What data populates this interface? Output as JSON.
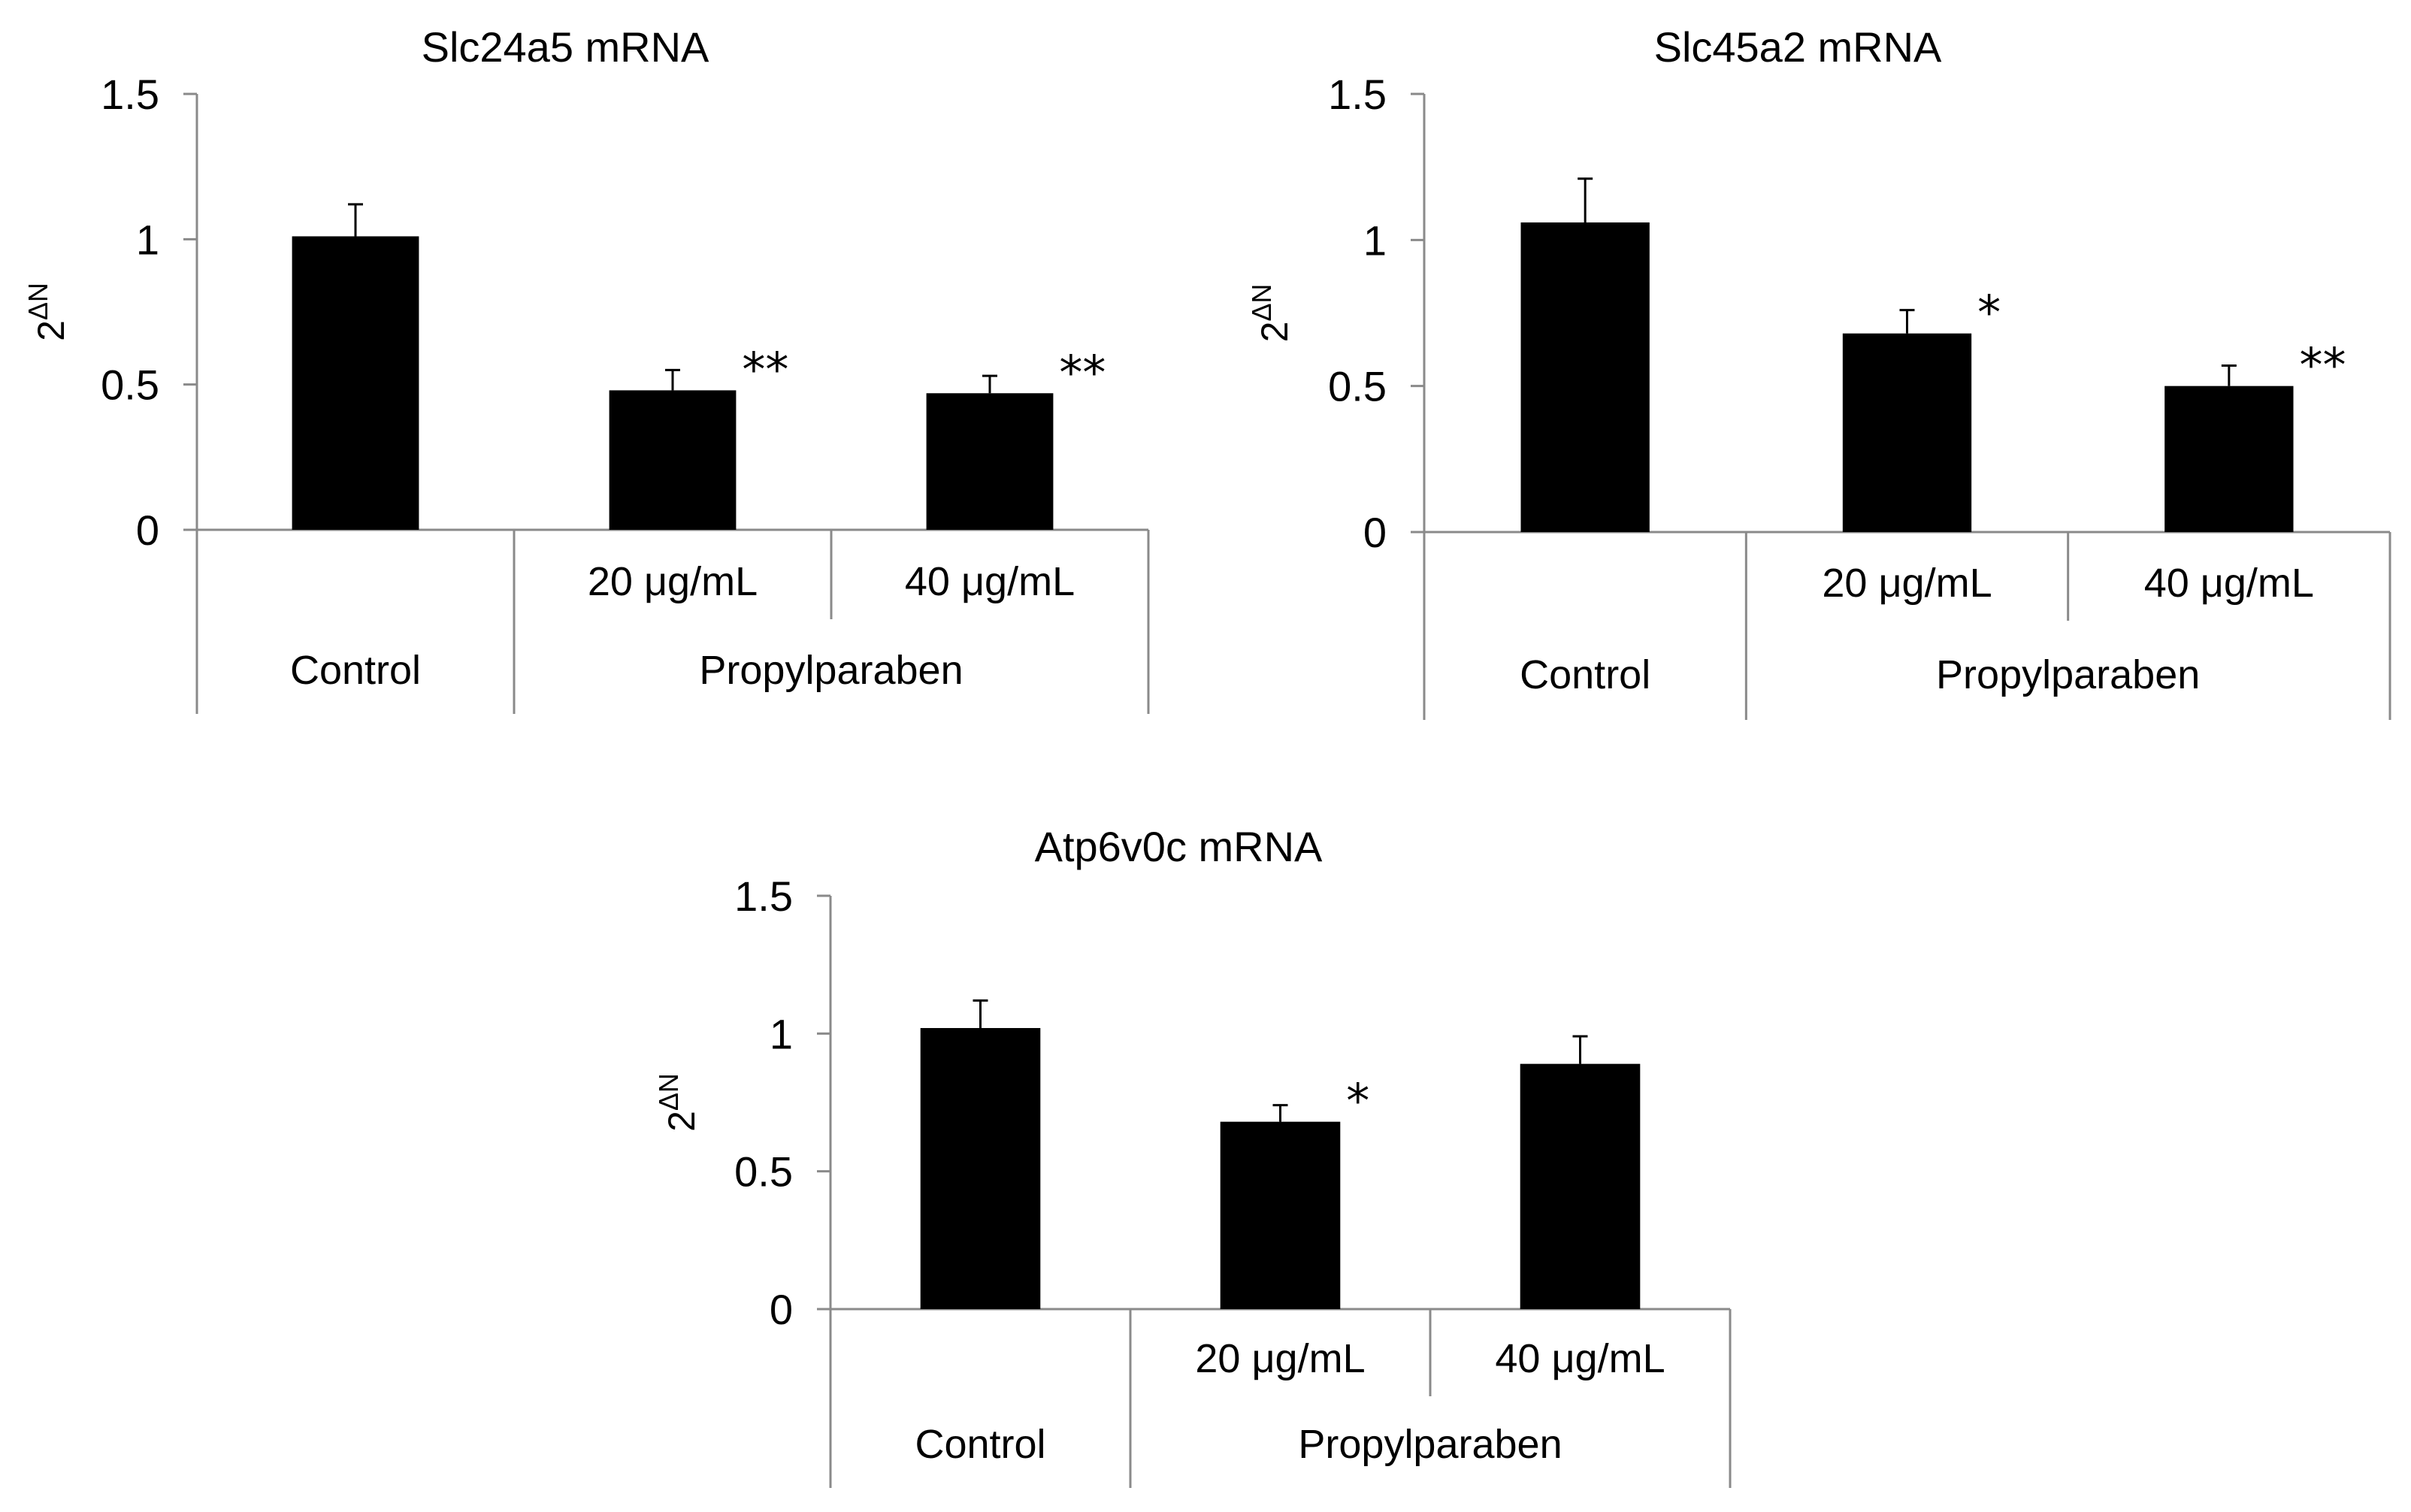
{
  "chart_data": [
    {
      "type": "bar",
      "title": "Slc24a5  mRNA",
      "ylabel": "2",
      "ylabel_sup": "ΔN",
      "ylim": [
        0,
        1.5
      ],
      "yticks": [
        0,
        0.5,
        1,
        1.5
      ],
      "ytick_labels": [
        "0",
        "0.5",
        "1",
        "1.5"
      ],
      "categories": [
        "Control",
        "20 μg/mL",
        "40 μg/mL"
      ],
      "group_labels": [
        "Control",
        "Propylparaben"
      ],
      "values": [
        1.01,
        0.48,
        0.47
      ],
      "errors": [
        0.11,
        0.07,
        0.06
      ],
      "significance": [
        "",
        "**",
        "**"
      ]
    },
    {
      "type": "bar",
      "title": "Slc45a2  mRNA",
      "ylabel": "2",
      "ylabel_sup": "ΔN",
      "ylim": [
        0,
        1.5
      ],
      "yticks": [
        0,
        0.5,
        1,
        1.5
      ],
      "ytick_labels": [
        "0",
        "0.5",
        "1",
        "1.5"
      ],
      "categories": [
        "Control",
        "20 μg/mL",
        "40 μg/mL"
      ],
      "group_labels": [
        "Control",
        "Propylparaben"
      ],
      "values": [
        1.06,
        0.68,
        0.5
      ],
      "errors": [
        0.15,
        0.08,
        0.07
      ],
      "significance": [
        "",
        "*",
        "**"
      ]
    },
    {
      "type": "bar",
      "title": "Atp6v0c  mRNA",
      "ylabel": "2",
      "ylabel_sup": "ΔN",
      "ylim": [
        0,
        1.5
      ],
      "yticks": [
        0,
        0.5,
        1,
        1.5
      ],
      "ytick_labels": [
        "0",
        "0.5",
        "1",
        "1.5"
      ],
      "categories": [
        "Control",
        "20 μg/mL",
        "40 μg/mL"
      ],
      "group_labels": [
        "Control",
        "Propylparaben"
      ],
      "values": [
        1.02,
        0.68,
        0.89
      ],
      "errors": [
        0.1,
        0.06,
        0.1
      ],
      "significance": [
        "",
        "*",
        ""
      ]
    }
  ]
}
